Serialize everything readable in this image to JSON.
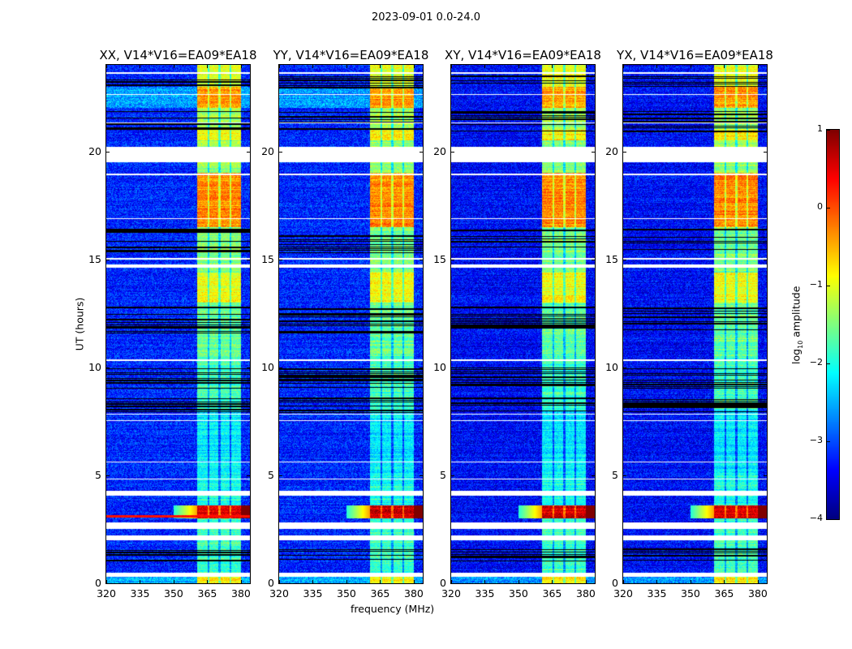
{
  "chart_data": {
    "type": "heatmap",
    "suptitle": "2023-09-01 0.0-24.0",
    "panels": [
      {
        "title": "XX, V14*V16=EA09*EA18",
        "red_line_hours": 3.1
      },
      {
        "title": "YY, V14*V16=EA09*EA18",
        "red_line_hours": null
      },
      {
        "title": "XY, V14*V16=EA09*EA18",
        "red_line_hours": null
      },
      {
        "title": "YX, V14*V16=EA09*EA18",
        "red_line_hours": null
      }
    ],
    "xlabel": "frequency (MHz)",
    "ylabel": "UT (hours)",
    "xlim": [
      320,
      384
    ],
    "ylim": [
      0,
      24
    ],
    "xticks": [
      320,
      335,
      350,
      365,
      380
    ],
    "yticks": [
      0,
      5,
      10,
      15,
      20
    ],
    "colorbar": {
      "label": "log10 amplitude",
      "label_main": "log",
      "label_sub": "10",
      "label_rest": " amplitude",
      "range": [
        -4,
        1
      ],
      "ticks": [
        1,
        0,
        -1,
        -2,
        -3,
        -4
      ],
      "colormap": "jet"
    },
    "band_mhz": [
      360.5,
      380
    ],
    "subband_edges_mhz": [
      365.5,
      370.5,
      375.3
    ],
    "background_log_amplitude": -3.2,
    "segments_hours_band_level": [
      [
        0,
        0.5,
        -0.8
      ],
      [
        0.5,
        3.0,
        -1.8
      ],
      [
        3.0,
        3.6,
        0.6
      ],
      [
        3.6,
        5.0,
        -2.0
      ],
      [
        5.0,
        8.0,
        -2.2
      ],
      [
        8.0,
        10.5,
        -1.8
      ],
      [
        10.5,
        13.0,
        -1.6
      ],
      [
        13.0,
        14.4,
        -0.9
      ],
      [
        14.4,
        16.5,
        -1.5
      ],
      [
        16.5,
        19.0,
        -0.3
      ],
      [
        19.0,
        20.5,
        -1.4
      ],
      [
        20.5,
        21.0,
        -0.8
      ],
      [
        21.0,
        22.0,
        -1.3
      ],
      [
        22.0,
        23.0,
        -0.4
      ],
      [
        23.0,
        24.0,
        -1.0
      ]
    ],
    "flagged_hours": [
      [
        0.3,
        0.5
      ],
      [
        2.0,
        2.2
      ],
      [
        2.5,
        2.8
      ],
      [
        4.05,
        4.3
      ],
      [
        4.8,
        4.85
      ],
      [
        5.6,
        5.65
      ],
      [
        7.5,
        7.55
      ],
      [
        7.8,
        7.85
      ],
      [
        10.3,
        10.35
      ],
      [
        14.6,
        14.75
      ],
      [
        15.0,
        15.05
      ],
      [
        16.85,
        16.9
      ],
      [
        18.9,
        18.95
      ],
      [
        19.5,
        20.2
      ],
      [
        21.3,
        21.35
      ],
      [
        22.6,
        22.65
      ],
      [
        23.6,
        23.65
      ]
    ],
    "striped_hours": [
      [
        1.0,
        1.6
      ],
      [
        7.9,
        8.6
      ],
      [
        9.0,
        10.0
      ],
      [
        11.5,
        12.8
      ],
      [
        15.3,
        16.4
      ],
      [
        20.9,
        21.9
      ],
      [
        22.9,
        23.5
      ]
    ]
  }
}
